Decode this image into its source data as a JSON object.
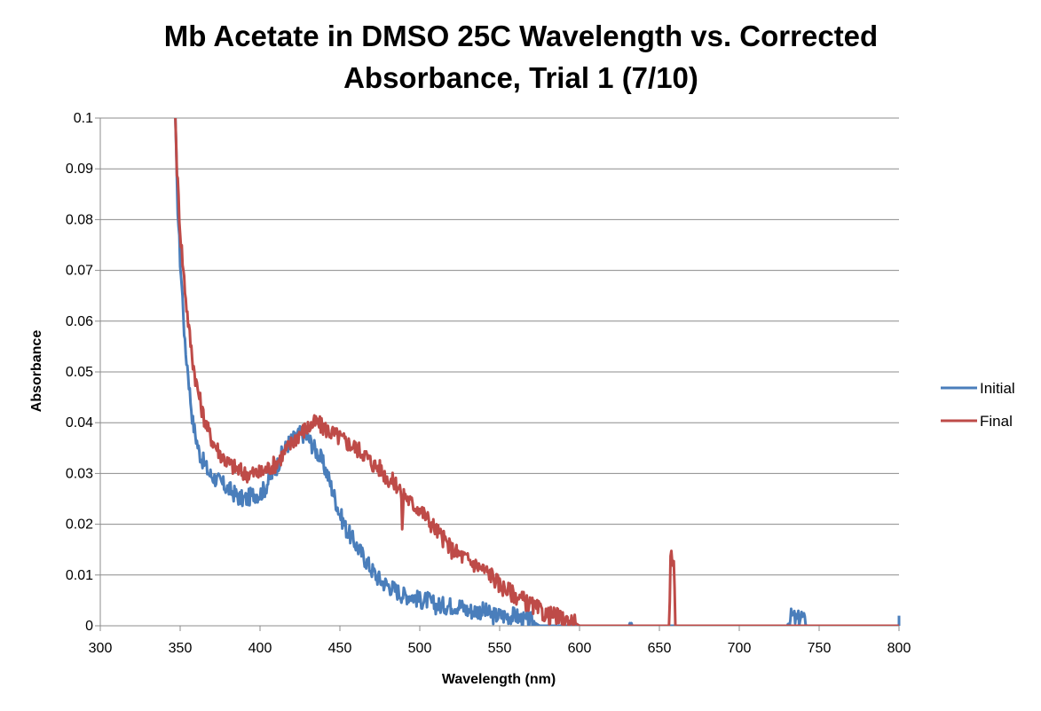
{
  "chart_data": {
    "type": "line",
    "title_line1": "Mb Acetate in DMSO 25C Wavelength vs. Corrected",
    "title_line2": "Absorbance, Trial 1 (7/10)",
    "xlabel": "Wavelength (nm)",
    "ylabel": "Absorbance",
    "xlim": [
      300,
      800
    ],
    "ylim": [
      0,
      0.1
    ],
    "x_ticks": [
      "300",
      "350",
      "400",
      "450",
      "500",
      "550",
      "600",
      "650",
      "700",
      "750",
      "800"
    ],
    "y_ticks": [
      "0",
      "0.01",
      "0.02",
      "0.03",
      "0.04",
      "0.05",
      "0.06",
      "0.07",
      "0.08",
      "0.09",
      "0.1"
    ],
    "grid": "horizontal",
    "legend_position": "right",
    "series": [
      {
        "name": "Initial",
        "color": "#4a7ebb",
        "points": [
          [
            347,
            0.1
          ],
          [
            348,
            0.086
          ],
          [
            350,
            0.072
          ],
          [
            352,
            0.062
          ],
          [
            353,
            0.055
          ],
          [
            355,
            0.05
          ],
          [
            356,
            0.046
          ],
          [
            357,
            0.043
          ],
          [
            358,
            0.04
          ],
          [
            360,
            0.037
          ],
          [
            362,
            0.034
          ],
          [
            365,
            0.032
          ],
          [
            368,
            0.03
          ],
          [
            372,
            0.029
          ],
          [
            376,
            0.028
          ],
          [
            380,
            0.027
          ],
          [
            384,
            0.026
          ],
          [
            388,
            0.025
          ],
          [
            392,
            0.025
          ],
          [
            396,
            0.026
          ],
          [
            400,
            0.026
          ],
          [
            403,
            0.027
          ],
          [
            406,
            0.029
          ],
          [
            410,
            0.031
          ],
          [
            414,
            0.034
          ],
          [
            418,
            0.036
          ],
          [
            422,
            0.037
          ],
          [
            426,
            0.038
          ],
          [
            430,
            0.037
          ],
          [
            434,
            0.035
          ],
          [
            438,
            0.033
          ],
          [
            442,
            0.03
          ],
          [
            446,
            0.026
          ],
          [
            450,
            0.022
          ],
          [
            454,
            0.019
          ],
          [
            458,
            0.017
          ],
          [
            462,
            0.015
          ],
          [
            466,
            0.013
          ],
          [
            470,
            0.011
          ],
          [
            475,
            0.009
          ],
          [
            480,
            0.008
          ],
          [
            485,
            0.007
          ],
          [
            490,
            0.006
          ],
          [
            495,
            0.006
          ],
          [
            500,
            0.005
          ],
          [
            505,
            0.005
          ],
          [
            510,
            0.004
          ],
          [
            515,
            0.004
          ],
          [
            520,
            0.004
          ],
          [
            525,
            0.004
          ],
          [
            530,
            0.003
          ],
          [
            535,
            0.003
          ],
          [
            540,
            0.003
          ],
          [
            545,
            0.002
          ],
          [
            550,
            0.002
          ],
          [
            555,
            0.002
          ],
          [
            560,
            0.002
          ],
          [
            565,
            0.001
          ],
          [
            570,
            0.001
          ],
          [
            575,
            0
          ],
          [
            600,
            0
          ],
          [
            631,
            0
          ],
          [
            632,
            0.001
          ],
          [
            633,
            0
          ],
          [
            700,
            0
          ],
          [
            730,
            0
          ],
          [
            733,
            0.002
          ],
          [
            736,
            0.001
          ],
          [
            739,
            0.002
          ],
          [
            742,
            0
          ],
          [
            800,
            0
          ],
          [
            800,
            0.002
          ]
        ]
      },
      {
        "name": "Final",
        "color": "#be4b48",
        "points": [
          [
            347,
            0.1
          ],
          [
            348,
            0.09
          ],
          [
            350,
            0.078
          ],
          [
            352,
            0.07
          ],
          [
            354,
            0.063
          ],
          [
            356,
            0.057
          ],
          [
            358,
            0.052
          ],
          [
            360,
            0.048
          ],
          [
            362,
            0.045
          ],
          [
            364,
            0.042
          ],
          [
            366,
            0.04
          ],
          [
            368,
            0.038
          ],
          [
            371,
            0.036
          ],
          [
            375,
            0.034
          ],
          [
            380,
            0.032
          ],
          [
            385,
            0.031
          ],
          [
            390,
            0.03
          ],
          [
            395,
            0.03
          ],
          [
            400,
            0.03
          ],
          [
            405,
            0.031
          ],
          [
            410,
            0.032
          ],
          [
            415,
            0.034
          ],
          [
            420,
            0.036
          ],
          [
            425,
            0.038
          ],
          [
            430,
            0.039
          ],
          [
            435,
            0.04
          ],
          [
            440,
            0.039
          ],
          [
            445,
            0.038
          ],
          [
            450,
            0.037
          ],
          [
            455,
            0.036
          ],
          [
            460,
            0.035
          ],
          [
            465,
            0.034
          ],
          [
            470,
            0.032
          ],
          [
            475,
            0.031
          ],
          [
            480,
            0.029
          ],
          [
            485,
            0.028
          ],
          [
            488,
            0.027
          ],
          [
            489,
            0.02
          ],
          [
            490,
            0.026
          ],
          [
            495,
            0.024
          ],
          [
            500,
            0.023
          ],
          [
            505,
            0.021
          ],
          [
            510,
            0.019
          ],
          [
            515,
            0.017
          ],
          [
            520,
            0.015
          ],
          [
            525,
            0.014
          ],
          [
            530,
            0.013
          ],
          [
            535,
            0.012
          ],
          [
            540,
            0.011
          ],
          [
            545,
            0.01
          ],
          [
            550,
            0.008
          ],
          [
            555,
            0.007
          ],
          [
            560,
            0.006
          ],
          [
            565,
            0.005
          ],
          [
            570,
            0.004
          ],
          [
            575,
            0.003
          ],
          [
            580,
            0.002
          ],
          [
            585,
            0.002
          ],
          [
            590,
            0.001
          ],
          [
            595,
            0.001
          ],
          [
            600,
            0
          ],
          [
            656,
            0
          ],
          [
            657,
            0.013
          ],
          [
            658,
            0.014
          ],
          [
            659,
            0.012
          ],
          [
            660,
            0
          ],
          [
            800,
            0
          ]
        ]
      }
    ]
  }
}
